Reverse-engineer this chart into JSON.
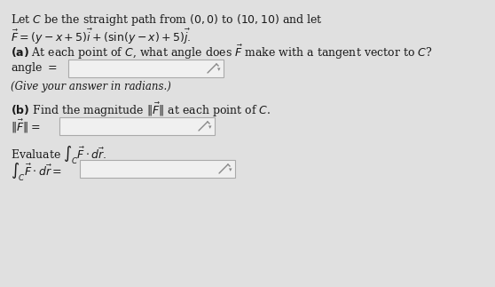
{
  "bg_color": "#e0e0e0",
  "text_color": "#1a1a1a",
  "box_color": "#f0f0f0",
  "box_edge_color": "#aaaaaa",
  "figsize": [
    5.58,
    3.23
  ],
  "dpi": 100,
  "font_size": 9.0
}
